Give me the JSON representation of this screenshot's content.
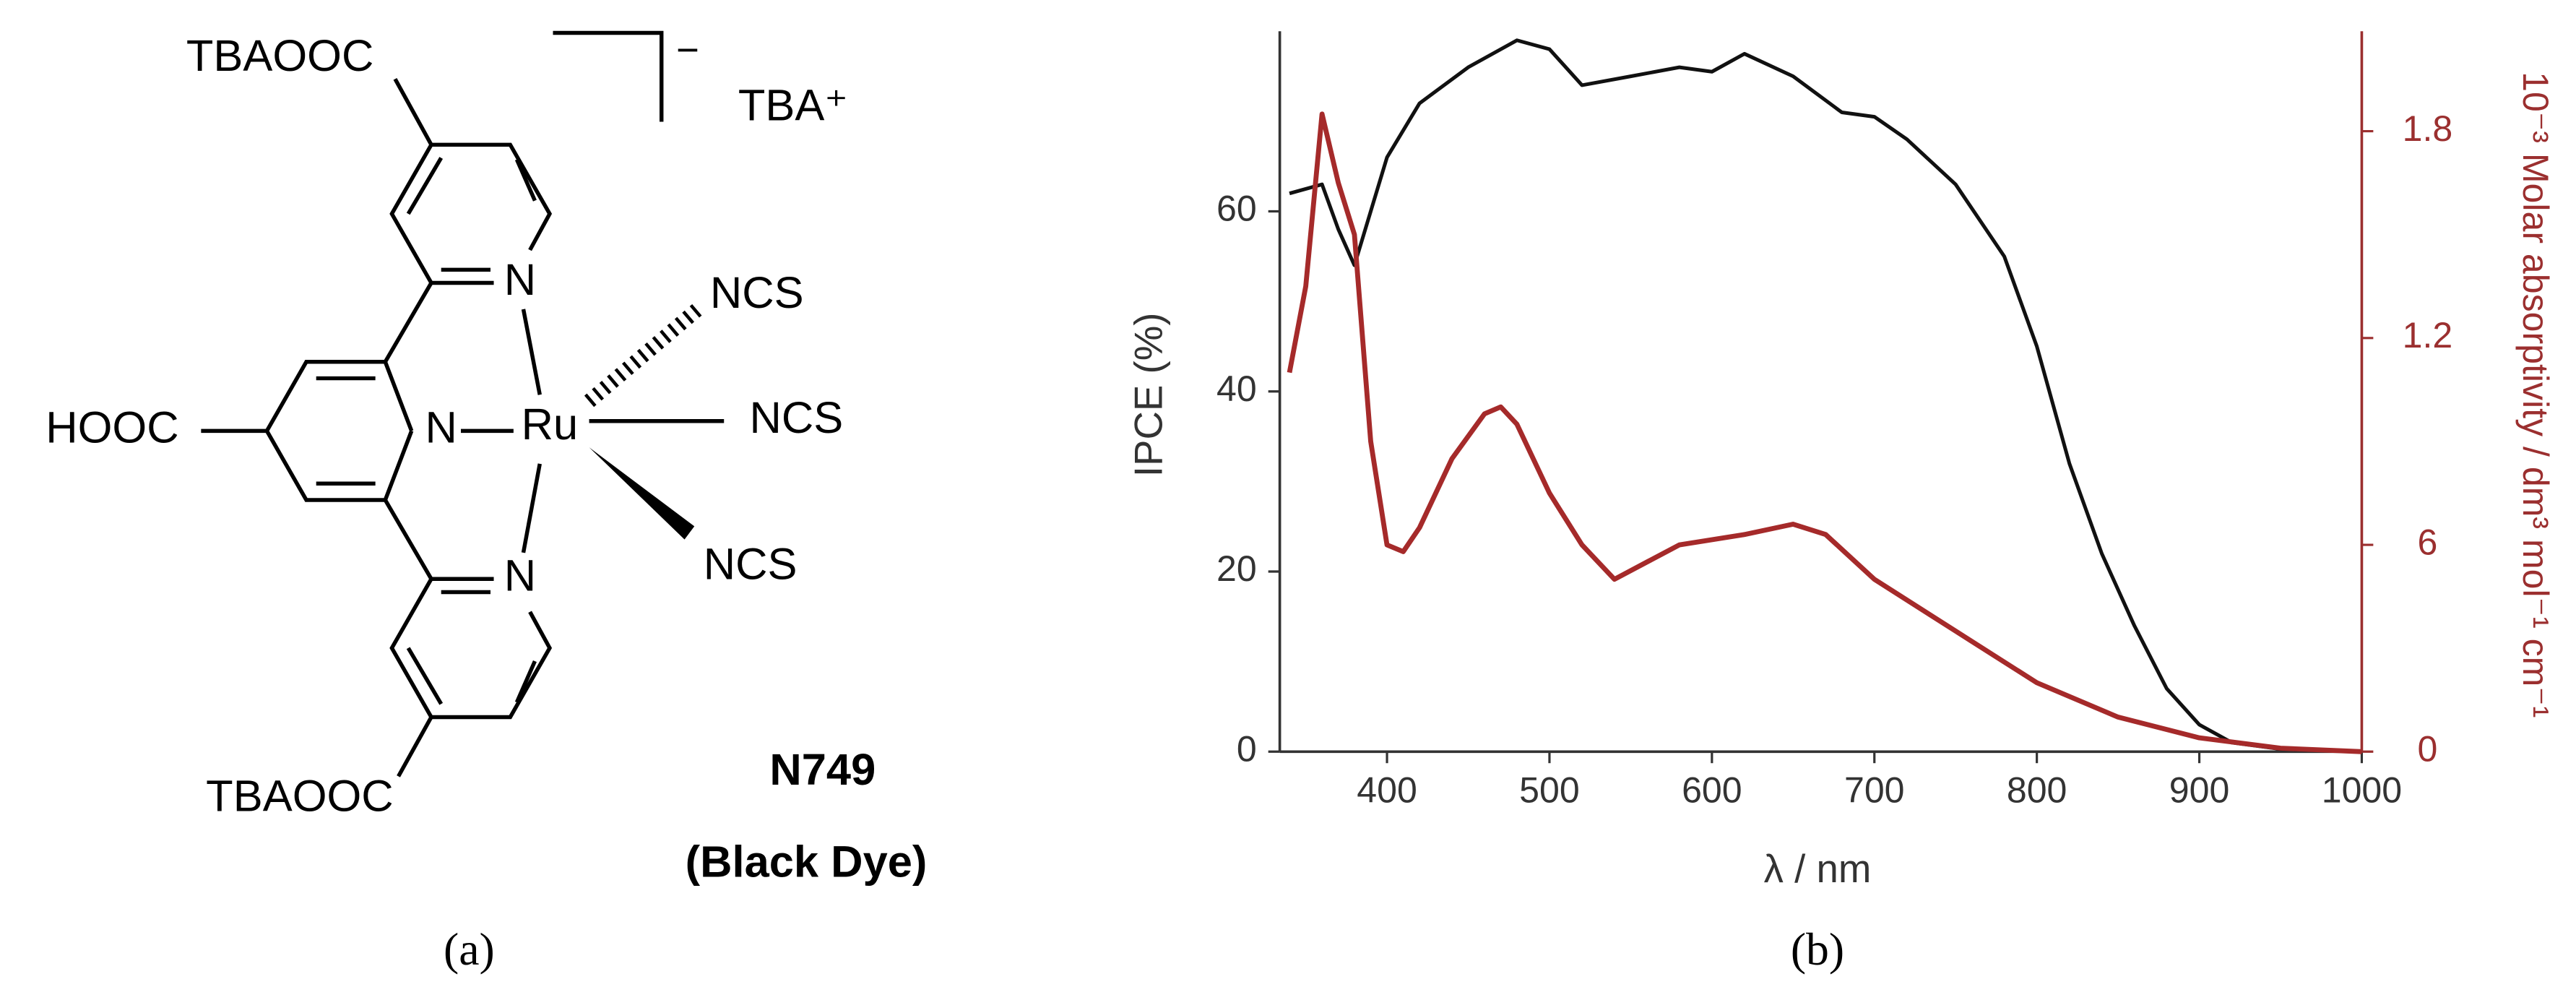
{
  "structure": {
    "labels": [
      "TBAOOC",
      "−",
      "TBA⁺",
      "N",
      "N",
      "N",
      "Ru",
      "HOOC",
      "NCS",
      "NCS",
      "NCS",
      "TBAOOC",
      "N749",
      "(Black Dye)"
    ]
  },
  "captions": [
    "(a)",
    "(b)"
  ],
  "chart_data": {
    "type": "line",
    "xlabel": "λ / nm",
    "ylabel": "IPCE (%)",
    "y2label": "10⁻³ Molar absorptivity / dm³ mol⁻¹ cm⁻¹",
    "xlim": [
      334,
      1000
    ],
    "xticks": [
      400,
      500,
      600,
      700,
      800,
      900,
      1000
    ],
    "ylim": [
      0,
      80
    ],
    "yticks": [
      0,
      20,
      40,
      60
    ],
    "y2lim": [
      0,
      2.09
    ],
    "y2ticks": [
      0,
      {
        "value": 0.6,
        "label": "6"
      },
      1.2,
      1.8
    ],
    "series": [
      {
        "color": "#111111",
        "axis": "y",
        "x": [
          340,
          360,
          370,
          380,
          390,
          400,
          420,
          450,
          480,
          500,
          520,
          550,
          580,
          600,
          620,
          650,
          680,
          700,
          720,
          750,
          780,
          800,
          820,
          840,
          860,
          880,
          900,
          920,
          950,
          1000
        ],
        "values": [
          62,
          63,
          58,
          54,
          60,
          66,
          72,
          76,
          79,
          78,
          74,
          75,
          76,
          75.5,
          77.5,
          75,
          71,
          70.5,
          68,
          63,
          55,
          45,
          32,
          22,
          14,
          7,
          3,
          1,
          0.3,
          0
        ]
      },
      {
        "color": "#a52a2a",
        "axis": "y2",
        "x": [
          340,
          350,
          360,
          370,
          380,
          390,
          400,
          410,
          420,
          440,
          460,
          470,
          480,
          500,
          520,
          540,
          560,
          580,
          620,
          650,
          670,
          700,
          750,
          800,
          850,
          900,
          950,
          1000
        ],
        "values": [
          1.1,
          1.35,
          1.85,
          1.65,
          1.5,
          0.9,
          0.6,
          0.58,
          0.65,
          0.85,
          0.98,
          1.0,
          0.95,
          0.75,
          0.6,
          0.5,
          0.55,
          0.6,
          0.63,
          0.66,
          0.63,
          0.5,
          0.35,
          0.2,
          0.1,
          0.04,
          0.01,
          0
        ]
      }
    ]
  }
}
